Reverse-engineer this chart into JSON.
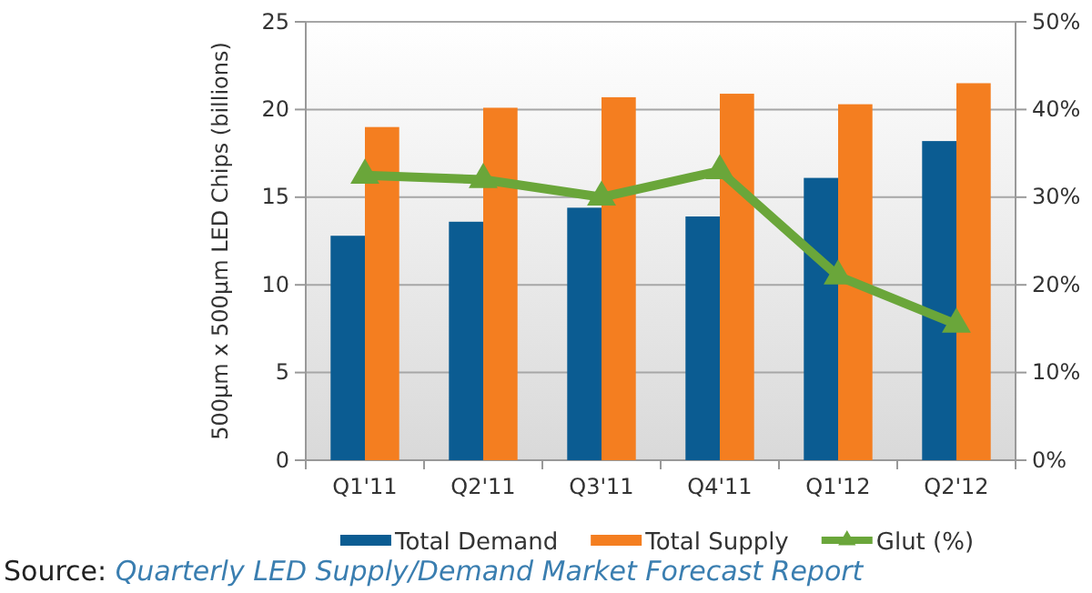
{
  "chart_data": {
    "type": "bar",
    "categories": [
      "Q1'11",
      "Q2'11",
      "Q3'11",
      "Q4'11",
      "Q1'12",
      "Q2'12"
    ],
    "ylabel": "500µm  x 500µm  LED Chips (billions)",
    "series": [
      {
        "name": "Total Demand",
        "color": "#0b5c92",
        "values": [
          12.8,
          13.6,
          14.4,
          13.9,
          16.1,
          18.2
        ]
      },
      {
        "name": "Total Supply",
        "color": "#f47e20",
        "values": [
          19.0,
          20.1,
          20.7,
          20.9,
          20.3,
          21.5
        ]
      },
      {
        "name": "Glut (%)",
        "type": "line",
        "axis": "y2",
        "color": "#6aa63a",
        "marker": "triangle",
        "values": [
          32.5,
          32,
          30,
          33,
          21,
          15.5
        ]
      }
    ],
    "ylim": [
      0,
      25
    ],
    "yticks": [
      0,
      5,
      10,
      15,
      20,
      25
    ],
    "y2lim": [
      0,
      50
    ],
    "y2ticks": [
      {
        "value": 0,
        "label": "0%"
      },
      {
        "value": 10,
        "label": "10%"
      },
      {
        "value": 20,
        "label": "20%"
      },
      {
        "value": 30,
        "label": "30%"
      },
      {
        "value": 40,
        "label": "40%"
      },
      {
        "value": 50,
        "label": "50%"
      }
    ],
    "grid": "y",
    "legend": "bottom",
    "annotations": [
      "Source:",
      "Quarterly LED Supply/Demand Market Forecast Report"
    ]
  }
}
